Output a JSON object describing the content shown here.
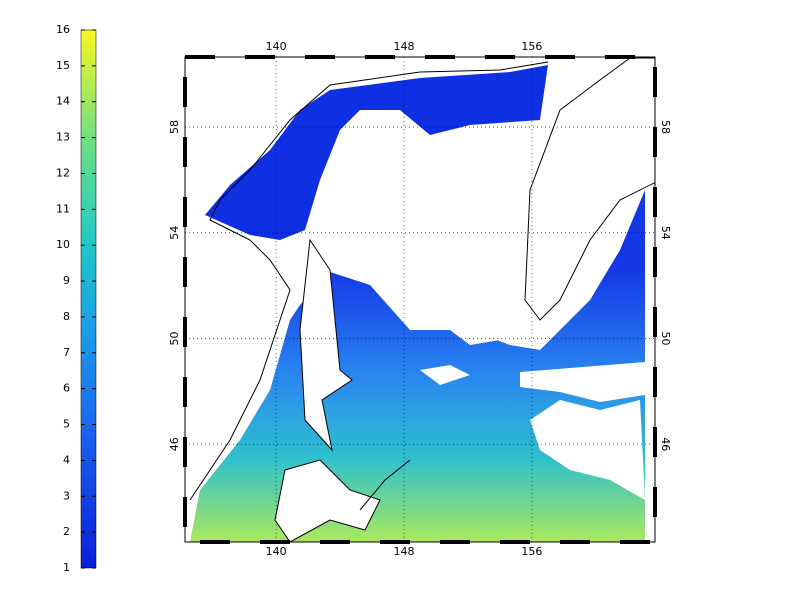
{
  "colorbar": {
    "lim": [
      1,
      16
    ],
    "ticks": [
      1,
      2,
      3,
      4,
      5,
      6,
      7,
      8,
      9,
      10,
      11,
      12,
      13,
      14,
      15,
      16
    ]
  },
  "map": {
    "xlim": [
      134.3,
      163.7
    ],
    "ylim": [
      42.3,
      60.65
    ],
    "xticks": [
      140,
      148,
      156
    ],
    "yticks": [
      46,
      50,
      54,
      58
    ],
    "grid": true
  }
}
